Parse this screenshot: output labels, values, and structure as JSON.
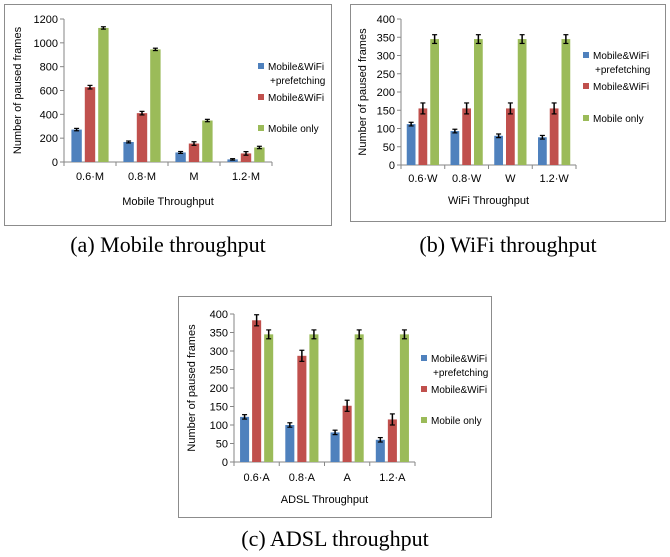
{
  "legend": [
    {
      "line1": "Mobile&WiFi",
      "line2": "+prefetching",
      "color": "#4f81bd"
    },
    {
      "line1": "Mobile&WiFi",
      "line2": "",
      "color": "#c0504d"
    },
    {
      "line1": "Mobile only",
      "line2": "",
      "color": "#9bbb59"
    }
  ],
  "captions": {
    "a": "(a) Mobile throughput",
    "b": "(b) WiFi throughput",
    "c": "(c) ADSL throughput"
  },
  "chart_data": [
    {
      "type": "bar",
      "title": "",
      "xlabel": "Mobile Throughput",
      "ylabel": "Number of paused frames",
      "categories": [
        "0.6·M",
        "0.8·M",
        "M",
        "1.2·M"
      ],
      "ylim": [
        0,
        1200
      ],
      "yticks": [
        0,
        200,
        400,
        600,
        800,
        1000,
        1200
      ],
      "series": [
        {
          "name": "Mobile&WiFi +prefetching",
          "values": [
            272,
            168,
            80,
            22
          ],
          "errors": [
            10,
            8,
            8,
            6
          ]
        },
        {
          "name": "Mobile&WiFi",
          "values": [
            628,
            410,
            155,
            72
          ],
          "errors": [
            15,
            15,
            15,
            15
          ]
        },
        {
          "name": "Mobile only",
          "values": [
            1125,
            945,
            348,
            122
          ],
          "errors": [
            10,
            10,
            10,
            10
          ]
        }
      ],
      "grid": false,
      "legend_position": "right"
    },
    {
      "type": "bar",
      "title": "",
      "xlabel": "WiFi Throughput",
      "ylabel": "Number of paused frames",
      "categories": [
        "0.6·W",
        "0.8·W",
        "W",
        "1.2·W"
      ],
      "ylim": [
        0,
        400
      ],
      "yticks": [
        0,
        50,
        100,
        150,
        200,
        250,
        300,
        350,
        400
      ],
      "series": [
        {
          "name": "Mobile&WiFi +prefetching",
          "values": [
            112,
            93,
            80,
            76
          ],
          "errors": [
            5,
            5,
            5,
            5
          ]
        },
        {
          "name": "Mobile&WiFi",
          "values": [
            155,
            155,
            155,
            155
          ],
          "errors": [
            15,
            15,
            15,
            15
          ]
        },
        {
          "name": "Mobile only",
          "values": [
            345,
            345,
            345,
            345
          ],
          "errors": [
            12,
            12,
            12,
            12
          ]
        }
      ],
      "grid": false,
      "legend_position": "right"
    },
    {
      "type": "bar",
      "title": "",
      "xlabel": "ADSL Throughput",
      "ylabel": "Number of paused frames",
      "categories": [
        "0.6·A",
        "0.8·A",
        "A",
        "1.2·A"
      ],
      "ylim": [
        0,
        400
      ],
      "yticks": [
        0,
        50,
        100,
        150,
        200,
        250,
        300,
        350,
        400
      ],
      "series": [
        {
          "name": "Mobile&WiFi +prefetching",
          "values": [
            122,
            100,
            80,
            60
          ],
          "errors": [
            6,
            6,
            6,
            6
          ]
        },
        {
          "name": "Mobile&WiFi",
          "values": [
            383,
            287,
            152,
            115
          ],
          "errors": [
            15,
            15,
            15,
            15
          ]
        },
        {
          "name": "Mobile only",
          "values": [
            345,
            345,
            345,
            345
          ],
          "errors": [
            12,
            12,
            12,
            12
          ]
        }
      ],
      "grid": false,
      "legend_position": "right"
    }
  ]
}
